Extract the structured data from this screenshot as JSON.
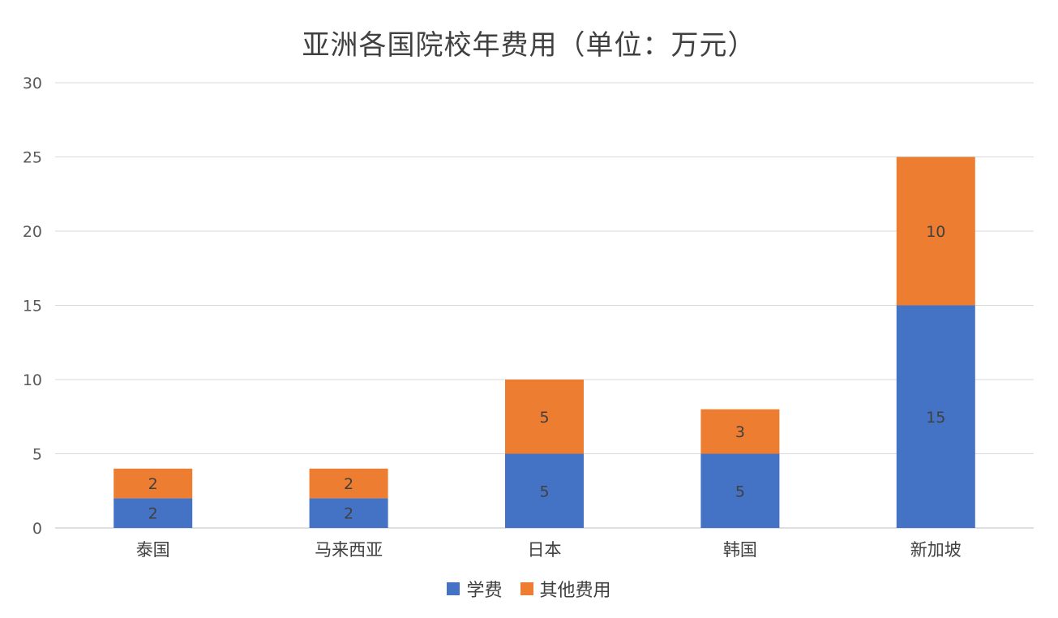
{
  "chart_data": {
    "type": "bar",
    "stacked": true,
    "title": "亚洲各国院校年费用（单位：万元）",
    "categories": [
      "泰国",
      "马来西亚",
      "日本",
      "韩国",
      "新加坡"
    ],
    "series": [
      {
        "name": "学费",
        "values": [
          2,
          2,
          5,
          5,
          15
        ],
        "color": "#4472C4"
      },
      {
        "name": "其他费用",
        "values": [
          2,
          2,
          5,
          3,
          10
        ],
        "color": "#ED7D31"
      }
    ],
    "ylim": [
      0,
      30
    ],
    "yticks": [
      "0",
      "5",
      "10",
      "15",
      "20",
      "25",
      "30"
    ],
    "grid": true,
    "legend_position": "bottom",
    "data_labels": true
  }
}
